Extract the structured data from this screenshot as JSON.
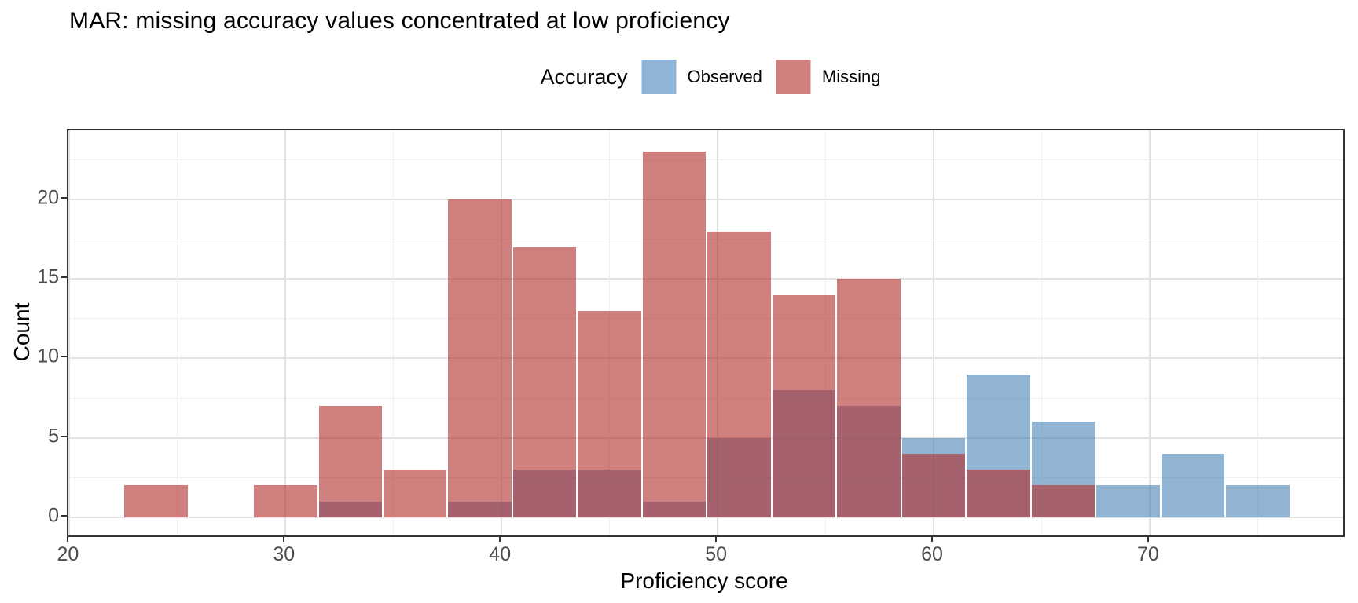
{
  "chart_data": {
    "type": "histogram",
    "title": "MAR: missing accuracy values concentrated at low proficiency",
    "xlabel": "Proficiency score",
    "ylabel": "Count",
    "legend_title": "Accuracy",
    "legend_position": "top-center",
    "grid": "on",
    "colors": {
      "observed_fill": "rgba(70,130,180,0.6)",
      "missing_fill": "rgba(178,48,47,0.62)",
      "observed_swatch": "#8fb4d7",
      "missing_swatch": "#cf7f7e",
      "panel_border": "#333333",
      "tick_label": "#4d4d4d"
    },
    "series": [
      {
        "name": "Observed"
      },
      {
        "name": "Missing"
      }
    ],
    "binwidth": 3,
    "bins": [
      {
        "start": 22.5,
        "end": 25.5,
        "observed": 0,
        "missing": 2
      },
      {
        "start": 25.5,
        "end": 28.5,
        "observed": 0,
        "missing": 0
      },
      {
        "start": 28.5,
        "end": 31.5,
        "observed": 0,
        "missing": 2
      },
      {
        "start": 31.5,
        "end": 34.5,
        "observed": 1,
        "missing": 7
      },
      {
        "start": 34.5,
        "end": 37.5,
        "observed": 0,
        "missing": 3
      },
      {
        "start": 37.5,
        "end": 40.5,
        "observed": 1,
        "missing": 20
      },
      {
        "start": 40.5,
        "end": 43.5,
        "observed": 3,
        "missing": 17
      },
      {
        "start": 43.5,
        "end": 46.5,
        "observed": 3,
        "missing": 13
      },
      {
        "start": 46.5,
        "end": 49.5,
        "observed": 1,
        "missing": 23
      },
      {
        "start": 49.5,
        "end": 52.5,
        "observed": 5,
        "missing": 18
      },
      {
        "start": 52.5,
        "end": 55.5,
        "observed": 8,
        "missing": 14
      },
      {
        "start": 55.5,
        "end": 58.5,
        "observed": 7,
        "missing": 15
      },
      {
        "start": 58.5,
        "end": 61.5,
        "observed": 5,
        "missing": 4
      },
      {
        "start": 61.5,
        "end": 64.5,
        "observed": 9,
        "missing": 3
      },
      {
        "start": 64.5,
        "end": 67.5,
        "observed": 6,
        "missing": 2
      },
      {
        "start": 67.5,
        "end": 70.5,
        "observed": 2,
        "missing": 0
      },
      {
        "start": 70.5,
        "end": 73.5,
        "observed": 4,
        "missing": 0
      },
      {
        "start": 73.5,
        "end": 76.5,
        "observed": 2,
        "missing": 0
      }
    ],
    "x_ticks": [
      20,
      30,
      40,
      50,
      60,
      70
    ],
    "x_minor_ticks": [
      25,
      35,
      45,
      55,
      65,
      75
    ],
    "y_ticks": [
      0,
      5,
      10,
      15,
      20
    ],
    "y_minor_ticks": [
      2.5,
      7.5,
      12.5,
      17.5,
      22.5
    ],
    "xlim": [
      19.95,
      78.95
    ],
    "ylim": [
      -1.14,
      24.35
    ]
  }
}
